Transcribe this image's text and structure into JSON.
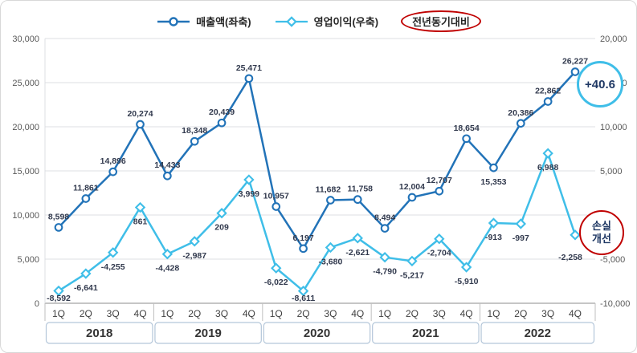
{
  "chart_data": {
    "type": "line",
    "legend": [
      {
        "label": "매출액(좌축)",
        "marker": "circle",
        "color": "#2273b8"
      },
      {
        "label": "영업이익(우축)",
        "marker": "diamond",
        "color": "#3fbee8"
      },
      {
        "label": "전년동기대비",
        "marker": "none",
        "color": "#c00000"
      }
    ],
    "left_axis": {
      "min": 0,
      "max": 30000,
      "step": 5000,
      "ticks": [
        "30,000",
        "25,000",
        "20,000",
        "15,000",
        "10,000",
        "5,000",
        "0"
      ]
    },
    "right_axis": {
      "min": -10000,
      "max": 20000,
      "step": 5000,
      "ticks": [
        "20,000",
        "15,000",
        "10,000",
        "5,000",
        "0",
        "-5,000",
        "-10,000"
      ]
    },
    "years": [
      "2018",
      "2019",
      "2020",
      "2021",
      "2022"
    ],
    "quarters": [
      "1Q",
      "2Q",
      "3Q",
      "4Q"
    ],
    "series": [
      {
        "name": "매출액(좌축)",
        "axis": "left",
        "marker": "circle",
        "color": "#2273b8",
        "values": [
          8598,
          11861,
          14896,
          20274,
          14433,
          18348,
          20439,
          25471,
          10957,
          6197,
          11682,
          11758,
          8494,
          12004,
          12707,
          18654,
          15353,
          20386,
          22862,
          26227
        ],
        "label_sides": [
          "above",
          "above",
          "above",
          "above",
          "above",
          "above",
          "above",
          "above",
          "above",
          "above",
          "above",
          "above",
          "above",
          "above",
          "above",
          "above",
          "below",
          "above",
          "above",
          "above"
        ],
        "label_overrides": {
          "10": {
            "dx": -3
          },
          "11": {
            "dx": 3
          }
        }
      },
      {
        "name": "영업이익(우축)",
        "axis": "right",
        "marker": "diamond",
        "color": "#3fbee8",
        "values": [
          -8592,
          -6641,
          -4255,
          861,
          -4428,
          -2987,
          209,
          3999,
          -6022,
          -8611,
          -3680,
          -2621,
          -4790,
          -5217,
          -2704,
          -5910,
          -913,
          -997,
          6988,
          -2258
        ],
        "label_sides": [
          "below",
          "below",
          "below",
          "below",
          "below",
          "below",
          "below",
          "below",
          "below",
          "below",
          "below",
          "below",
          "below",
          "below",
          "below",
          "below",
          "below",
          "below",
          "below",
          "below"
        ],
        "label_overrides": {
          "19": {
            "dx": -6,
            "dy": 31
          }
        }
      }
    ],
    "annotations": [
      {
        "text": "+40.6",
        "shape": "circle",
        "color": "#3fbee8"
      },
      {
        "text": "손실 개선",
        "lines": [
          "손실",
          "개선"
        ],
        "shape": "circle",
        "color": "#c00000"
      }
    ],
    "grid": true,
    "legend_position": "top"
  }
}
